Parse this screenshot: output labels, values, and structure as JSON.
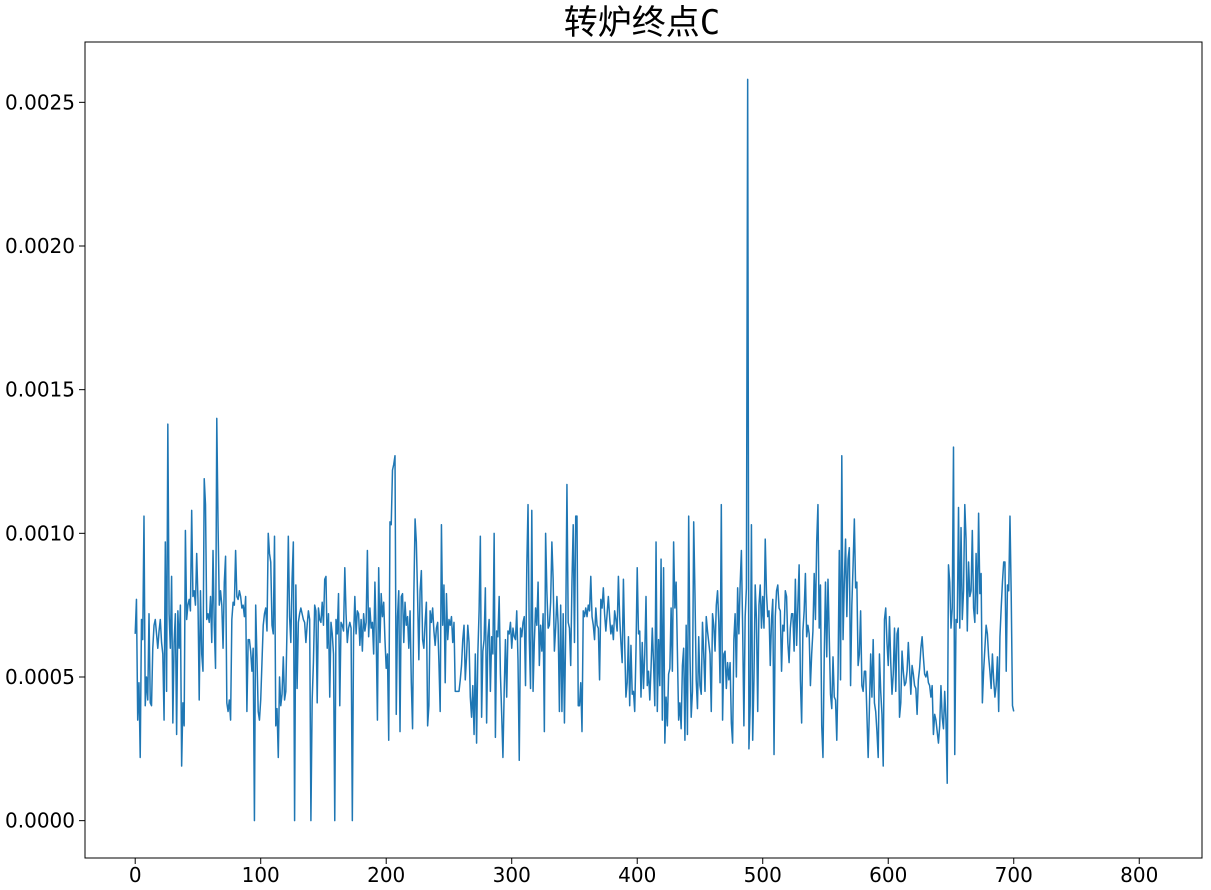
{
  "chart_data": {
    "type": "line",
    "title": "转炉终点C",
    "xlabel": "",
    "ylabel": "",
    "xlim": [
      -40,
      850
    ],
    "ylim": [
      -0.00013,
      0.00271
    ],
    "xticks": [
      0,
      100,
      200,
      300,
      400,
      500,
      600,
      700,
      800
    ],
    "yticks": [
      0.0,
      0.0005,
      0.001,
      0.0015,
      0.002,
      0.0025
    ],
    "xtick_labels": [
      "0",
      "100",
      "200",
      "300",
      "400",
      "500",
      "600",
      "700",
      "800"
    ],
    "ytick_labels": [
      "0.0000",
      "0.0005",
      "0.0010",
      "0.0015",
      "0.0020",
      "0.0025"
    ],
    "grid": false,
    "line_color": "#1f77b4",
    "x_start": 0,
    "x_step": 1,
    "values": [
      0.00065,
      0.00077,
      0.00035,
      0.00048,
      0.00022,
      0.0007,
      0.00063,
      0.00106,
      0.0004,
      0.0005,
      0.00042,
      0.00072,
      0.00041,
      0.0004,
      0.0006,
      0.00068,
      0.0007,
      0.00065,
      0.0006,
      0.00066,
      0.0007,
      0.00062,
      0.00058,
      0.00035,
      0.00097,
      0.00045,
      0.00138,
      0.00072,
      0.0006,
      0.00085,
      0.00034,
      0.00062,
      0.00072,
      0.0003,
      0.00073,
      0.0006,
      0.00075,
      0.00019,
      0.00041,
      0.00033,
      0.00101,
      0.0007,
      0.00075,
      0.00077,
      0.00073,
      0.00108,
      0.00078,
      0.0008,
      0.00075,
      0.00093,
      0.00077,
      0.00042,
      0.0008,
      0.00058,
      0.00052,
      0.00119,
      0.0011,
      0.0007,
      0.00072,
      0.00069,
      0.00078,
      0.00062,
      0.00094,
      0.00068,
      0.00053,
      0.0014,
      0.00103,
      0.00075,
      0.0008,
      0.00075,
      0.0006,
      0.00083,
      0.00092,
      0.00041,
      0.00038,
      0.00042,
      0.00035,
      0.0007,
      0.00076,
      0.00075,
      0.00094,
      0.00078,
      0.00077,
      0.0008,
      0.00078,
      0.00074,
      0.00075,
      0.00071,
      0.00078,
      0.00038,
      0.00063,
      0.00063,
      0.00059,
      0.00052,
      0.0006,
      0.0,
      0.00075,
      0.00057,
      0.00038,
      0.00035,
      0.00042,
      0.00055,
      0.00068,
      0.00072,
      0.00074,
      0.00066,
      0.001,
      0.00093,
      0.0009,
      0.00068,
      0.00065,
      0.00099,
      0.00033,
      0.00039,
      0.00022,
      0.0005,
      0.0004,
      0.00044,
      0.00057,
      0.00042,
      0.00045,
      0.00068,
      0.00099,
      0.00071,
      0.00062,
      0.00084,
      0.00097,
      0.0,
      0.00082,
      0.00046,
      0.00069,
      0.00072,
      0.00074,
      0.00072,
      0.0007,
      0.00069,
      0.00062,
      0.00068,
      0.00073,
      0.0007,
      0.0,
      0.00042,
      0.00055,
      0.00075,
      0.00073,
      0.00041,
      0.00074,
      0.0007,
      0.00069,
      0.00076,
      0.00068,
      0.00084,
      0.00085,
      0.0006,
      0.00072,
      0.00043,
      0.00069,
      0.00065,
      0.00058,
      0.0,
      0.0007,
      0.00065,
      0.00079,
      0.0004,
      0.00069,
      0.00068,
      0.00066,
      0.00088,
      0.00072,
      0.00062,
      0.00067,
      0.00069,
      0.00067,
      0.0,
      0.00064,
      0.00078,
      0.00065,
      0.00073,
      0.00072,
      0.00061,
      0.0007,
      0.00059,
      0.00072,
      0.00066
    ],
    "values_segment_2": [
      0.00069,
      0.00094,
      0.00064,
      0.00074,
      0.00067,
      0.00069,
      0.00058,
      0.00083,
      0.00065,
      0.00035,
      0.00088,
      0.00062,
      0.00079,
      0.00071,
      0.00076,
      0.00063,
      0.00053,
      0.00058,
      0.00028,
      0.00104,
      0.00103,
      0.00122,
      0.00124,
      0.00127,
      0.00037,
      0.00071,
      0.0008,
      0.00031,
      0.00078,
      0.00079,
      0.00062,
      0.00076,
      0.00068,
      0.00071,
      0.0006,
      0.00073,
      0.00048,
      0.00032,
      0.00078,
      0.00105,
      0.00097,
      0.00078,
      0.00056,
      0.0008,
      0.00087,
      0.00063,
      0.0006,
      0.00069,
      0.00076,
      0.00033,
      0.0004,
      0.00073,
      0.00069,
      0.00074,
      0.00066,
      0.00061,
      0.00067,
      0.00069,
      0.00055,
      0.00038,
      0.00103,
      0.00068,
      0.00082,
      0.00048,
      0.00079,
      0.00063,
      0.0007,
      0.00068,
      0.00071,
      0.00062,
      0.00069,
      0.00045,
      0.00045,
      0.00045,
      0.00045,
      0.00049,
      0.00054,
      0.00063,
      0.00068,
      0.00049,
      0.00057,
      0.00068,
      0.00062,
      0.00043,
      0.00036,
      0.00047,
      0.0003,
      0.00058,
      0.00027,
      0.00058,
      0.00073,
      0.00099,
      0.00036,
      0.00059,
      0.00063,
      0.00081,
      0.00034,
      0.00064,
      0.0007,
      0.00045,
      0.00064,
      0.00058,
      0.001,
      0.00029,
      0.00066,
      0.00064,
      0.00078,
      0.00051,
      0.00037,
      0.00022,
      0.00045,
      0.00063,
      0.00043,
      0.00066,
      0.00065,
      0.00069,
      0.0006,
      0.00067,
      0.00064,
      0.00063,
      0.00073,
      0.00056,
      0.00021,
      0.00067,
      0.00064,
      0.00069,
      0.00071,
      0.00047,
      0.00088,
      0.0011,
      0.00063,
      0.00046,
      0.00108,
      0.00045,
      0.00062,
      0.00074,
      0.00068,
      0.00083,
      0.00054,
      0.00068,
      0.00059,
      0.00072,
      0.00031,
      0.001,
      0.0008,
      0.00067,
      0.00068,
      0.00076,
      0.00097,
      0.00084,
      0.00059,
      0.00067,
      0.00078,
      0.00068,
      0.00038,
      0.00075,
      0.00038,
      0.00072,
      0.00034,
      0.00066,
      0.00117,
      0.00069,
      0.00067,
      0.00054,
      0.00083,
      0.00103,
      0.00062,
      0.00106,
      0.00106,
      0.0004,
      0.0004,
      0.00048,
      0.00031,
      0.00073,
      0.00071,
      0.00074,
      0.00071,
      0.00075,
      0.00073,
      0.00085,
      0.00071,
      0.00068,
      0.00063,
      0.00074,
      0.00068,
      0.00067,
      0.00049,
      0.00077,
      0.00074,
      0.00081,
      0.00072,
      0.00066,
      0.00072,
      0.00078,
      0.00071,
      0.00065,
      0.00068,
      0.00063,
      0.00073,
      0.0007,
      0.00066,
      0.00085,
      0.00071,
      0.00062,
      0.00055,
      0.00084,
      0.00062,
      0.00043,
      0.00048,
      0.00064,
      0.0004,
      0.00061,
      0.00044,
      0.00045,
      0.00038,
      0.00059,
      0.00088,
      0.00065,
      0.00066,
      0.00043,
      0.00062,
      0.00046,
      0.00058,
      0.00078,
      0.00047,
      0.00052,
      0.00042,
      0.00053,
      0.00067,
      0.00055,
      0.0004,
      0.00097,
      0.00038,
      0.00063,
      0.00047,
      0.00091,
      0.00035,
      0.00088,
      0.00027,
      0.00043,
      0.00033,
      0.00051,
      0.00053,
      0.00074,
      0.00052,
      0.00097,
      0.00074,
      0.00083,
      0.00059,
      0.00035,
      0.00041,
      0.00032,
      0.00054,
      0.0006,
      0.00028,
      0.00068,
      0.0003,
      0.00106,
      0.00058,
      0.00036,
      0.00045,
      0.00104,
      0.00079,
      0.00049,
      0.00039,
      0.00064,
      0.00047,
      0.00044,
      0.00069,
      0.00058,
      0.00045,
      0.00071,
      0.00066,
      0.00062,
      0.00058,
      0.00038,
      0.00072,
      0.00068,
      0.00059,
      0.00075,
      0.0008,
      0.00069,
      0.00048,
      0.0011,
      0.00035,
      0.00058,
      0.00059,
      0.00046,
      0.00055,
      0.00049,
      0.00055,
      0.00034,
      0.00027,
      0.00063,
      0.00072,
      0.0005,
      0.00081,
      0.00065,
      0.00082,
      0.00094,
      0.00067,
      0.00033,
      0.00071,
      0.00081,
      0.00258,
      0.00025,
      0.0004,
      0.00103,
      0.00028,
      0.00049,
      0.00082,
      0.0007,
      0.00038,
      0.00075,
      0.00082,
      0.00067,
      0.00078,
      0.00067,
      0.00098,
      0.00079,
      0.00071,
      0.00073
    ],
    "values_segment_3": [
      0.00054,
      0.0007,
      0.00077,
      0.00023,
      0.00071,
      0.0008,
      0.00082,
      0.00074,
      0.00073,
      0.00052,
      0.00068,
      0.00066,
      0.0008,
      0.00078,
      0.00062,
      0.00055,
      0.00067,
      0.00072,
      0.00072,
      0.00059,
      0.00084,
      0.00061,
      0.00075,
      0.00089,
      0.00049,
      0.00034,
      0.00066,
      0.00073,
      0.00086,
      0.00064,
      0.00068,
      0.00065,
      0.00047,
      0.00058,
      0.00066,
      0.00086,
      0.0007,
      0.00097,
      0.0011,
      0.00067,
      0.00082,
      0.00033,
      0.00022,
      0.00057,
      0.00083,
      0.00057,
      0.00084,
      0.00064,
      0.00044,
      0.00039,
      0.00057,
      0.00043,
      0.00042,
      0.00028,
      0.00051,
      0.00094,
      0.00049,
      0.00127,
      0.00063,
      0.00083,
      0.00098,
      0.00071,
      0.00091,
      0.00095,
      0.00047,
      0.00075,
      0.00089,
      0.00105,
      0.00081,
      0.00083,
      0.00054,
      0.00058,
      0.00073,
      0.00047,
      0.00045,
      0.00052,
      0.00052,
      0.00037,
      0.00022,
      0.00039,
      0.00058,
      0.00043,
      0.00063,
      0.00041,
      0.00038,
      0.00031,
      0.00022,
      0.00058,
      0.00045,
      0.00037,
      0.00019,
      0.0007,
      0.00074,
      0.00062,
      0.00054,
      0.00071,
      0.00055,
      0.00044,
      0.00051,
      0.00067,
      0.00045,
      0.00065,
      0.00067,
      0.00036,
      0.00041,
      0.00059,
      0.00052,
      0.00047,
      0.00048,
      0.00052,
      0.00062,
      0.00053,
      0.00044,
      0.00054,
      0.00051,
      0.00047,
      0.00046,
      0.00037,
      0.00049,
      0.00053,
      0.0006,
      0.00064,
      0.00057,
      0.00051,
      0.0005,
      0.00052,
      0.00048,
      0.00047,
      0.00043,
      0.00047,
      0.0003,
      0.00037,
      0.00035,
      0.00031,
      0.00027,
      0.00033,
      0.00047,
      0.00036,
      0.00032,
      0.00045,
      0.00035,
      0.00013,
      0.00089,
      0.00083,
      0.00067,
      0.00074,
      0.0013,
      0.00023,
      0.0007,
      0.00069,
      0.00109,
      0.00067,
      0.00102,
      0.0007,
      0.0008,
      0.0011,
      0.00098,
      0.00066,
      0.0009,
      0.00078,
      0.0008,
      0.00101,
      0.00074,
      0.00069,
      0.00093,
      0.00072,
      0.00107,
      0.00079,
      0.00086,
      0.00041,
      0.00052,
      0.0006,
      0.00068,
      0.00065,
      0.00057,
      0.00052,
      0.00046,
      0.00058,
      0.00049,
      0.00043,
      0.00047,
      0.00057,
      0.00038,
      0.00064,
      0.00074,
      0.00083,
      0.0009,
      0.0009,
      0.00052,
      0.00082,
      0.0008,
      0.00106,
      0.00078,
      0.0004,
      0.00038
    ]
  }
}
